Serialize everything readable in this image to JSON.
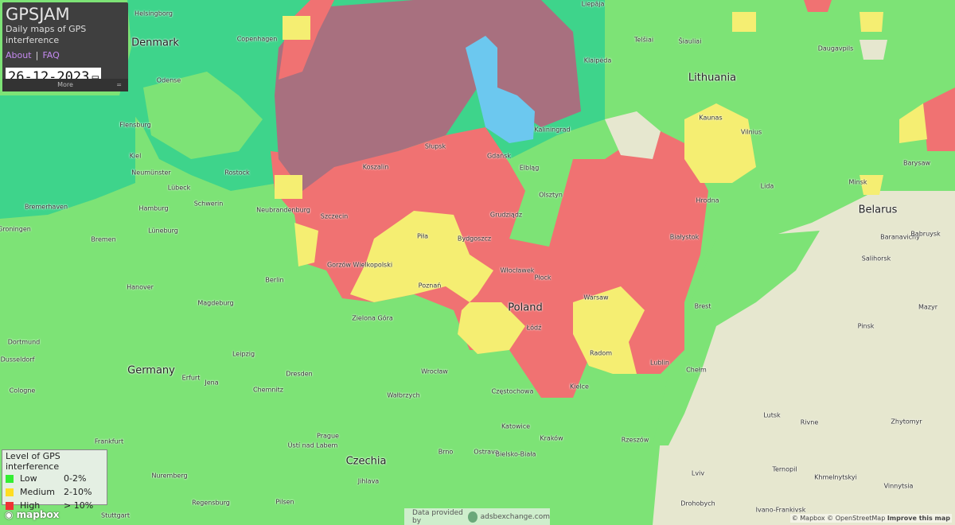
{
  "app": {
    "title": "GPSJAM",
    "subtitle": "Daily maps of GPS interference",
    "about": "About",
    "separator": "|",
    "faq": "FAQ",
    "date": "26-12-2023",
    "more": "More",
    "more_icon": "="
  },
  "legend": {
    "title": "Level of GPS interference",
    "items": [
      {
        "label": "Low",
        "range": "0-2%",
        "color": "#33ee33"
      },
      {
        "label": "Medium",
        "range": "2-10%",
        "color": "#ffdd22"
      },
      {
        "label": "High",
        "range": "> 10%",
        "color": "#ee3333"
      }
    ]
  },
  "footer": {
    "mapbox": "mapbox",
    "data_prefix": "Data provided by",
    "data_source": "adsbexchange.com",
    "attribution": "© Mapbox © OpenStreetMap",
    "improve": "Improve this map"
  },
  "map": {
    "countries": [
      "Denmark",
      "Lithuania",
      "Belarus",
      "Poland",
      "Germany",
      "Czechia"
    ],
    "cities": [
      "Helsingborg",
      "Copenhagen",
      "Odense",
      "Flensburg",
      "Kiel",
      "Neumünster",
      "Lübeck",
      "Rostock",
      "Hamburg",
      "Schwerin",
      "Bremerhaven",
      "Bremen",
      "Lüneburg",
      "Groningen",
      "Neubrandenburg",
      "Hanover",
      "Magdeburg",
      "Berlin",
      "Dortmund",
      "Leipzig",
      "Dusseldorf",
      "Cologne",
      "Erfurt",
      "Jena",
      "Chemnitz",
      "Dresden",
      "Frankfurt",
      "Nuremberg",
      "Pilsen",
      "Prague",
      "Ústí nad Labem",
      "Regensburg",
      "Stuttgart",
      "Jihlava",
      "Brno",
      "Ostrava",
      "Bielsko-Biała",
      "Katowice",
      "Kraków",
      "Rzeszów",
      "Częstochowa",
      "Wałbrzych",
      "Wrocław",
      "Zielona Góra",
      "Poznań",
      "Piła",
      "Gorzów Wielkopolski",
      "Szczecin",
      "Koszalin",
      "Słupsk",
      "Gdańsk",
      "Elbląg",
      "Bydgoszcz",
      "Grudziądz",
      "Olsztyn",
      "Włocławek",
      "Płock",
      "Łódź",
      "Warsaw",
      "Radom",
      "Kielce",
      "Lublin",
      "Chełm",
      "Brest",
      "Białystok",
      "Hrodna",
      "Kaliningrad",
      "Klaipėda",
      "Liepāja",
      "Telšiai",
      "Šiauliai",
      "Kaunas",
      "Vilnius",
      "Daugavpils",
      "Lida",
      "Minsk",
      "Barysaw",
      "Baranavichy",
      "Babruysk",
      "Salihorsk",
      "Mazyr",
      "Pinsk",
      "Lutsk",
      "Rivne",
      "Zhytomyr",
      "Lviv",
      "Ternopil",
      "Khmelnytskyi",
      "Vinnytsia",
      "Drohobych",
      "Ivano-Frankivsk"
    ]
  },
  "colors": {
    "low": "#7de376",
    "sea": "#3ed48b",
    "high": "#f07272",
    "high_sea": "#a8707f",
    "medium": "#f5ee72",
    "blue": "#6cc8ef",
    "land_beige": "#e6e7cf"
  }
}
